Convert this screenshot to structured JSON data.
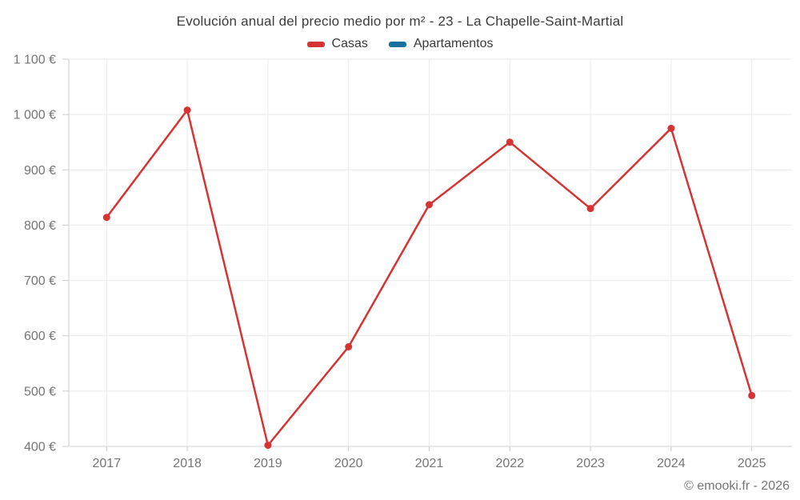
{
  "chart": {
    "title": "Evolución anual del precio medio por m² - 23 - La Chapelle-Saint-Martial",
    "footer": "© emooki.fr - 2026"
  },
  "chart_data": {
    "type": "line",
    "title": "Evolución anual del precio medio por m² - 23 - La Chapelle-Saint-Martial",
    "categories": [
      "2017",
      "2018",
      "2019",
      "2020",
      "2021",
      "2022",
      "2023",
      "2024",
      "2025"
    ],
    "series": [
      {
        "name": "Casas",
        "color": "#d63434",
        "values": [
          814,
          1008,
          402,
          580,
          837,
          950,
          830,
          975,
          492
        ]
      },
      {
        "name": "Apartamentos",
        "color": "#17719f",
        "values": []
      }
    ],
    "xlabel": "",
    "ylabel": "",
    "ylim": [
      400,
      1100
    ],
    "yticks": [
      {
        "value": 400,
        "label": "400 €"
      },
      {
        "value": 500,
        "label": "500 €"
      },
      {
        "value": 600,
        "label": "600 €"
      },
      {
        "value": 700,
        "label": "700 €"
      },
      {
        "value": 800,
        "label": "800 €"
      },
      {
        "value": 900,
        "label": "900 €"
      },
      {
        "value": 1000,
        "label": "1 000 €"
      },
      {
        "value": 1100,
        "label": "1 100 €"
      }
    ],
    "grid": true,
    "legend_position": "top",
    "marker_radius": 4.5,
    "line_width": 2.5
  }
}
